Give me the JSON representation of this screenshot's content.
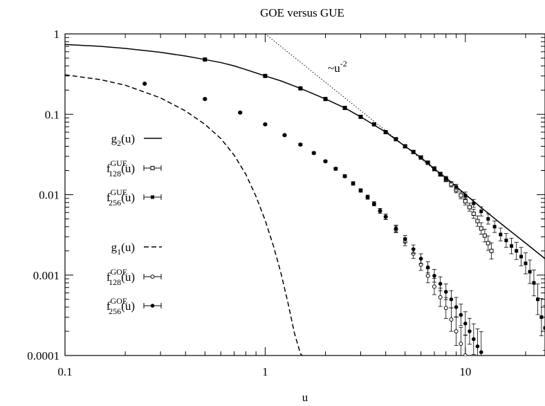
{
  "chart_data": {
    "type": "scatter",
    "title": "GOE versus GUE",
    "xlabel": "u",
    "ylabel": "",
    "xscale": "log",
    "yscale": "log",
    "xlim": [
      0.1,
      25
    ],
    "ylim": [
      0.0001,
      1
    ],
    "x_ticks": [
      {
        "value": 0.1,
        "label": "0.1"
      },
      {
        "value": 1,
        "label": "1"
      },
      {
        "value": 10,
        "label": "10"
      }
    ],
    "y_ticks": [
      {
        "value": 1,
        "label": "1"
      },
      {
        "value": 0.1,
        "label": "0.1"
      },
      {
        "value": 0.01,
        "label": "0.01"
      },
      {
        "value": 0.001,
        "label": "0.001"
      },
      {
        "value": 0.0001,
        "label": "0.0001"
      }
    ],
    "grid": false,
    "legend_position": "left",
    "annotation": {
      "base": "~u",
      "exponent": "-2",
      "x": 1.6,
      "y": 0.45
    },
    "series": [
      {
        "name": "g_2(u)",
        "name_base": "g",
        "name_sub": "2",
        "name_sup": "",
        "name_tail": "(u)",
        "kind": "line",
        "dash": "solid",
        "points": [
          [
            0.1,
            0.74
          ],
          [
            0.15,
            0.7
          ],
          [
            0.2,
            0.66
          ],
          [
            0.3,
            0.59
          ],
          [
            0.4,
            0.53
          ],
          [
            0.5,
            0.48
          ],
          [
            0.6,
            0.44
          ],
          [
            0.7,
            0.4
          ],
          [
            0.8,
            0.36
          ],
          [
            1.0,
            0.3
          ],
          [
            1.2,
            0.26
          ],
          [
            1.5,
            0.21
          ],
          [
            2.0,
            0.155
          ],
          [
            2.5,
            0.12
          ],
          [
            3.0,
            0.093
          ],
          [
            4.0,
            0.06
          ],
          [
            5.0,
            0.04
          ],
          [
            6.0,
            0.029
          ],
          [
            7.0,
            0.021
          ],
          [
            8.0,
            0.0162
          ],
          [
            10.0,
            0.0101
          ],
          [
            12.0,
            0.0069
          ],
          [
            15.0,
            0.0044
          ],
          [
            20.0,
            0.0025
          ],
          [
            25.0,
            0.0016
          ]
        ]
      },
      {
        "name": "f_128^GUE(u)",
        "name_base": "f",
        "name_sub": "128",
        "name_sup": "GUE",
        "name_tail": "(u)",
        "kind": "errorbar",
        "marker": "square-open",
        "points": [
          [
            0.5,
            0.48
          ],
          [
            1.0,
            0.3
          ],
          [
            1.5,
            0.21
          ],
          [
            2.0,
            0.155
          ],
          [
            2.5,
            0.12
          ],
          [
            3.0,
            0.093
          ],
          [
            3.5,
            0.075
          ],
          [
            4.0,
            0.06
          ],
          [
            4.5,
            0.049
          ],
          [
            5.0,
            0.04
          ],
          [
            5.5,
            0.034
          ],
          [
            6.0,
            0.029
          ],
          [
            6.5,
            0.025
          ],
          [
            7.0,
            0.021
          ],
          [
            7.5,
            0.018
          ],
          [
            8.0,
            0.0155
          ],
          [
            8.5,
            0.0135
          ],
          [
            9.0,
            0.0115
          ],
          [
            9.5,
            0.0098
          ],
          [
            10.0,
            0.0083
          ],
          [
            10.5,
            0.007
          ],
          [
            11.0,
            0.0058
          ],
          [
            11.5,
            0.0047
          ],
          [
            12.0,
            0.0038
          ],
          [
            12.5,
            0.0031
          ],
          [
            13.0,
            0.0025
          ],
          [
            13.5,
            0.002
          ]
        ],
        "err_factor": [
          1.02,
          1.02,
          1.02,
          1.02,
          1.02,
          1.03,
          1.03,
          1.03,
          1.03,
          1.04,
          1.04,
          1.05,
          1.05,
          1.06,
          1.06,
          1.07,
          1.08,
          1.09,
          1.1,
          1.11,
          1.12,
          1.14,
          1.16,
          1.18,
          1.2,
          1.23,
          1.26
        ]
      },
      {
        "name": "f_256^GUE(u)",
        "name_base": "f",
        "name_sub": "256",
        "name_sup": "GUE",
        "name_tail": "(u)",
        "kind": "errorbar",
        "marker": "square-filled",
        "points": [
          [
            0.5,
            0.48
          ],
          [
            1.0,
            0.3
          ],
          [
            1.5,
            0.21
          ],
          [
            2.0,
            0.155
          ],
          [
            2.5,
            0.12
          ],
          [
            3.0,
            0.093
          ],
          [
            3.5,
            0.075
          ],
          [
            4.0,
            0.06
          ],
          [
            4.5,
            0.049
          ],
          [
            5.0,
            0.04
          ],
          [
            5.5,
            0.034
          ],
          [
            6.0,
            0.029
          ],
          [
            6.5,
            0.025
          ],
          [
            7.0,
            0.021
          ],
          [
            7.5,
            0.018
          ],
          [
            8.0,
            0.0158
          ],
          [
            9.0,
            0.0125
          ],
          [
            10.0,
            0.0098
          ],
          [
            11.0,
            0.0078
          ],
          [
            12.0,
            0.0062
          ],
          [
            13.0,
            0.005
          ],
          [
            14.0,
            0.004
          ],
          [
            15.0,
            0.0032
          ],
          [
            16.0,
            0.0027
          ],
          [
            17.0,
            0.0023
          ],
          [
            18.0,
            0.002
          ],
          [
            19.0,
            0.0017
          ],
          [
            20.0,
            0.0014
          ],
          [
            21.0,
            0.0011
          ],
          [
            22.0,
            0.0008
          ],
          [
            23.0,
            0.0005
          ],
          [
            24.0,
            0.0003
          ],
          [
            25.0,
            0.00022
          ]
        ],
        "err_factor": [
          1.02,
          1.02,
          1.02,
          1.02,
          1.02,
          1.03,
          1.03,
          1.03,
          1.03,
          1.04,
          1.04,
          1.05,
          1.05,
          1.06,
          1.06,
          1.07,
          1.08,
          1.1,
          1.12,
          1.14,
          1.16,
          1.18,
          1.2,
          1.22,
          1.25,
          1.28,
          1.3,
          1.35,
          1.4,
          1.45,
          1.55,
          1.7,
          1.9
        ]
      },
      {
        "name": "g_1(u)",
        "name_base": "g",
        "name_sub": "1",
        "name_sup": "",
        "name_tail": "(u)",
        "kind": "line",
        "dash": "dashed",
        "points": [
          [
            0.1,
            0.31
          ],
          [
            0.15,
            0.27
          ],
          [
            0.2,
            0.23
          ],
          [
            0.3,
            0.16
          ],
          [
            0.4,
            0.11
          ],
          [
            0.5,
            0.075
          ],
          [
            0.6,
            0.05
          ],
          [
            0.7,
            0.031
          ],
          [
            0.8,
            0.018
          ],
          [
            0.9,
            0.0095
          ],
          [
            1.0,
            0.0048
          ],
          [
            1.1,
            0.0023
          ],
          [
            1.2,
            0.00105
          ],
          [
            1.3,
            0.00045
          ],
          [
            1.4,
            0.00019
          ],
          [
            1.5,
            0.000105
          ],
          [
            1.53,
            0.0001
          ]
        ]
      },
      {
        "name": "f_128^GOE(u)",
        "name_base": "f",
        "name_sub": "128",
        "name_sup": "GOE",
        "name_tail": "(u)",
        "kind": "errorbar",
        "marker": "circle-open",
        "points": [
          [
            0.25,
            0.24
          ],
          [
            0.5,
            0.155
          ],
          [
            0.75,
            0.105
          ],
          [
            1.0,
            0.075
          ],
          [
            1.25,
            0.055
          ],
          [
            1.5,
            0.042
          ],
          [
            1.75,
            0.033
          ],
          [
            2.0,
            0.026
          ],
          [
            2.25,
            0.021
          ],
          [
            2.5,
            0.017
          ],
          [
            2.75,
            0.0138
          ],
          [
            3.0,
            0.0113
          ],
          [
            3.25,
            0.0093
          ],
          [
            3.5,
            0.0077
          ],
          [
            3.75,
            0.0063
          ],
          [
            4.0,
            0.0053
          ],
          [
            4.5,
            0.0037
          ],
          [
            5.0,
            0.0026
          ],
          [
            5.5,
            0.00185
          ],
          [
            6.0,
            0.00135
          ],
          [
            6.5,
            0.00098
          ],
          [
            7.0,
            0.00072
          ],
          [
            7.5,
            0.00053
          ],
          [
            8.0,
            0.00039
          ],
          [
            8.5,
            0.00028
          ],
          [
            9.0,
            0.0002
          ],
          [
            9.5,
            0.00014
          ],
          [
            10.0,
            0.0001
          ]
        ],
        "err_factor": [
          1.02,
          1.02,
          1.02,
          1.02,
          1.02,
          1.03,
          1.03,
          1.03,
          1.04,
          1.04,
          1.05,
          1.05,
          1.06,
          1.06,
          1.07,
          1.08,
          1.1,
          1.12,
          1.15,
          1.18,
          1.22,
          1.26,
          1.3,
          1.35,
          1.4,
          1.5,
          1.6,
          1.8
        ]
      },
      {
        "name": "f_256^GOE(u)",
        "name_base": "f",
        "name_sub": "256",
        "name_sup": "GOE",
        "name_tail": "(u)",
        "kind": "errorbar",
        "marker": "circle-filled",
        "points": [
          [
            0.25,
            0.24
          ],
          [
            0.5,
            0.155
          ],
          [
            0.75,
            0.105
          ],
          [
            1.0,
            0.075
          ],
          [
            1.25,
            0.055
          ],
          [
            1.5,
            0.042
          ],
          [
            1.75,
            0.033
          ],
          [
            2.0,
            0.026
          ],
          [
            2.25,
            0.021
          ],
          [
            2.5,
            0.017
          ],
          [
            2.75,
            0.0138
          ],
          [
            3.0,
            0.0113
          ],
          [
            3.25,
            0.0093
          ],
          [
            3.5,
            0.0077
          ],
          [
            3.75,
            0.0063
          ],
          [
            4.0,
            0.0053
          ],
          [
            4.5,
            0.0038
          ],
          [
            5.0,
            0.0028
          ],
          [
            5.5,
            0.0021
          ],
          [
            6.0,
            0.0016
          ],
          [
            6.5,
            0.00125
          ],
          [
            7.0,
            0.00098
          ],
          [
            7.5,
            0.00078
          ],
          [
            8.0,
            0.00062
          ],
          [
            8.5,
            0.0005
          ],
          [
            9.0,
            0.0004
          ],
          [
            9.5,
            0.00032
          ],
          [
            10.0,
            0.00025
          ],
          [
            10.5,
            0.0002
          ],
          [
            11.0,
            0.00016
          ],
          [
            11.5,
            0.00013
          ],
          [
            12.0,
            0.00011
          ]
        ],
        "err_factor": [
          1.02,
          1.02,
          1.02,
          1.02,
          1.02,
          1.03,
          1.03,
          1.03,
          1.04,
          1.04,
          1.05,
          1.05,
          1.06,
          1.06,
          1.07,
          1.08,
          1.1,
          1.11,
          1.13,
          1.15,
          1.17,
          1.2,
          1.22,
          1.25,
          1.28,
          1.32,
          1.36,
          1.4,
          1.45,
          1.55,
          1.65,
          1.8
        ]
      },
      {
        "name": "~u^-2",
        "name_base": "",
        "name_sub": "",
        "name_sup": "",
        "name_tail": "",
        "kind": "line",
        "dash": "dotted",
        "in_legend": false,
        "points": [
          [
            1.0,
            1.0
          ],
          [
            25.0,
            0.0016
          ]
        ]
      }
    ]
  }
}
